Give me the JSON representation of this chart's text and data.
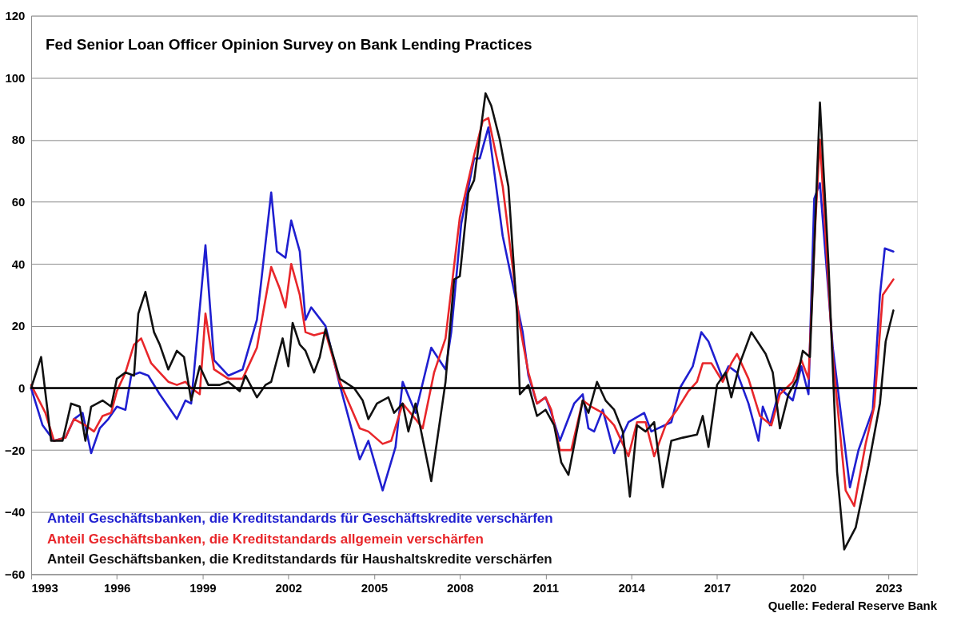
{
  "chart_data": {
    "type": "line",
    "title": "Fed Senior Loan Officer Opinion Survey on Bank Lending Practices",
    "annotations": [
      "Quelle: Federal Reserve Bank"
    ],
    "xlim": [
      1993,
      2024
    ],
    "xticks": [
      1993,
      1996,
      1999,
      2002,
      2005,
      2008,
      2011,
      2014,
      2017,
      2020,
      2023
    ],
    "ylim": [
      -60,
      120
    ],
    "yticks": [
      -60,
      -40,
      -20,
      0,
      20,
      40,
      60,
      80,
      100,
      120
    ],
    "grid": "y",
    "legend": "bottom left",
    "marker": "none",
    "line_style": "solid",
    "ref_lines": [
      {
        "axis": "y",
        "value": 0,
        "color": "#000000"
      }
    ],
    "series": [
      {
        "name": "Anteil Geschäftsbanken, die Kreditstandards für Geschäftskredite verschärfen",
        "color": "#1f1fd0",
        "x": [
          1993.0,
          1993.4,
          1993.8,
          1994.2,
          1994.5,
          1994.8,
          1995.1,
          1995.4,
          1995.7,
          1996.0,
          1996.3,
          1996.5,
          1996.8,
          1997.1,
          1997.5,
          1997.8,
          1998.1,
          1998.4,
          1998.6,
          1999.1,
          1999.4,
          1999.9,
          2000.4,
          2000.9,
          2001.4,
          2001.6,
          2001.9,
          2002.1,
          2002.4,
          2002.6,
          2002.8,
          2003.3,
          2003.8,
          2004.5,
          2004.8,
          2005.3,
          2005.75,
          2006.0,
          2006.45,
          2007.0,
          2007.5,
          2007.7,
          2008.05,
          2008.5,
          2008.7,
          2009.0,
          2009.5,
          2010.2,
          2010.4,
          2010.7,
          2011.0,
          2011.2,
          2011.5,
          2012.0,
          2012.3,
          2012.5,
          2012.7,
          2013.0,
          2013.4,
          2013.9,
          2014.45,
          2014.7,
          2015.4,
          2015.7,
          2016.15,
          2016.45,
          2016.7,
          2017.2,
          2017.4,
          2017.7,
          2018.1,
          2018.45,
          2018.6,
          2018.85,
          2019.2,
          2019.65,
          2019.95,
          2020.2,
          2020.4,
          2020.6,
          2021.05,
          2021.65,
          2021.95,
          2022.45,
          2022.7,
          2022.87,
          2023.17
        ],
        "values": [
          0,
          -12,
          -17,
          -16,
          -10,
          -8,
          -21,
          -13,
          -10,
          -6,
          -7,
          4,
          5,
          4,
          -2,
          -6,
          -10,
          -4,
          -5,
          46,
          9,
          4,
          6,
          22,
          63,
          44,
          42,
          54,
          44,
          22,
          26,
          20,
          1,
          -23,
          -17,
          -33,
          -19,
          2,
          -8,
          13,
          6,
          18,
          53,
          74,
          74,
          84,
          49,
          18,
          4,
          -5,
          -3,
          -8,
          -17,
          -5,
          -2,
          -13,
          -14,
          -7,
          -21,
          -11,
          -8,
          -14,
          -11,
          0,
          7,
          18,
          15,
          3,
          7,
          5,
          -5,
          -17,
          -6,
          -12,
          0,
          -4,
          7,
          -2,
          61,
          66,
          13,
          -32,
          -20,
          -7,
          30,
          45,
          44
        ]
      },
      {
        "name": "Anteil Geschäftsbanken, die Kreditstandards allgemein verschärfen",
        "color": "#e8262a",
        "x": [
          1993.0,
          1993.5,
          1993.8,
          1994.2,
          1994.5,
          1994.9,
          1995.2,
          1995.5,
          1995.8,
          1996.0,
          1996.3,
          1996.6,
          1996.85,
          1997.2,
          1997.5,
          1997.8,
          1998.1,
          1998.4,
          1998.6,
          1998.9,
          1999.1,
          1999.4,
          1999.9,
          2000.4,
          2000.9,
          2001.4,
          2001.7,
          2001.9,
          2002.1,
          2002.4,
          2002.6,
          2002.9,
          2003.3,
          2003.8,
          2004.5,
          2004.8,
          2005.3,
          2005.6,
          2006.0,
          2006.45,
          2006.7,
          2007.1,
          2007.5,
          2008.0,
          2008.5,
          2008.8,
          2009.0,
          2009.5,
          2010.1,
          2010.4,
          2010.7,
          2011.0,
          2011.2,
          2011.5,
          2011.9,
          2012.3,
          2012.6,
          2013.0,
          2013.4,
          2013.9,
          2014.2,
          2014.5,
          2014.8,
          2015.2,
          2015.6,
          2016.0,
          2016.3,
          2016.5,
          2016.8,
          2017.2,
          2017.5,
          2017.7,
          2018.1,
          2018.5,
          2018.9,
          2019.2,
          2019.65,
          2019.95,
          2020.2,
          2020.45,
          2020.6,
          2021.05,
          2021.5,
          2021.8,
          2022.2,
          2022.5,
          2022.8,
          2023.17
        ],
        "values": [
          1,
          -8,
          -17,
          -16,
          -10,
          -12,
          -14,
          -9,
          -8,
          -1,
          5,
          14,
          16,
          8,
          5,
          2,
          1,
          2,
          0,
          -2,
          24,
          6,
          3,
          3,
          13,
          39,
          32,
          26,
          40,
          30,
          18,
          17,
          18,
          2,
          -13,
          -14,
          -18,
          -17,
          -5,
          -10,
          -13,
          5,
          16,
          55,
          75,
          86,
          87,
          65,
          20,
          5,
          -5,
          -3,
          -7,
          -20,
          -20,
          -4,
          -6,
          -8,
          -12,
          -22,
          -11,
          -11,
          -22,
          -12,
          -7,
          -1,
          2,
          8,
          8,
          2,
          8,
          11,
          3,
          -9,
          -12,
          -2,
          2,
          9,
          3,
          55,
          80,
          10,
          -33,
          -38,
          -18,
          -6,
          30,
          35
        ]
      },
      {
        "name": "Anteil Geschäftsbanken, die Kreditstandards für Haushaltskredite verschärfen",
        "color": "#111111",
        "x": [
          1993.0,
          1993.35,
          1993.7,
          1994.1,
          1994.4,
          1994.7,
          1994.9,
          1995.1,
          1995.5,
          1995.8,
          1996.0,
          1996.3,
          1996.6,
          1996.75,
          1997.0,
          1997.3,
          1997.5,
          1997.8,
          1998.1,
          1998.35,
          1998.6,
          1998.9,
          1999.2,
          1999.6,
          1999.9,
          2000.3,
          2000.5,
          2000.9,
          2001.2,
          2001.4,
          2001.8,
          2002.0,
          2002.15,
          2002.4,
          2002.6,
          2002.9,
          2003.1,
          2003.3,
          2003.8,
          2004.3,
          2004.6,
          2004.8,
          2005.1,
          2005.5,
          2005.7,
          2006.0,
          2006.2,
          2006.45,
          2007.0,
          2007.5,
          2007.8,
          2008.0,
          2008.3,
          2008.5,
          2008.9,
          2009.1,
          2009.4,
          2009.7,
          2010.0,
          2010.1,
          2010.4,
          2010.7,
          2011.0,
          2011.3,
          2011.55,
          2011.8,
          2012.3,
          2012.5,
          2012.8,
          2013.1,
          2013.4,
          2013.7,
          2013.95,
          2014.2,
          2014.5,
          2014.8,
          2015.1,
          2015.4,
          2015.8,
          2016.3,
          2016.5,
          2016.7,
          2017.0,
          2017.3,
          2017.5,
          2017.8,
          2018.2,
          2018.7,
          2018.95,
          2019.2,
          2019.5,
          2019.8,
          2020.0,
          2020.25,
          2020.6,
          2020.9,
          2021.2,
          2021.45,
          2021.85,
          2022.3,
          2022.7,
          2022.9,
          2023.17
        ],
        "values": [
          0,
          10,
          -17,
          -17,
          -5,
          -6,
          -17,
          -6,
          -4,
          -6,
          3,
          5,
          4,
          24,
          31,
          18,
          14,
          6,
          12,
          10,
          -4,
          7,
          1,
          1,
          2,
          -1,
          4,
          -3,
          1,
          2,
          16,
          7,
          21,
          14,
          12,
          5,
          10,
          19,
          3,
          0,
          -4,
          -10,
          -5,
          -3,
          -8,
          -5,
          -14,
          -5,
          -30,
          2,
          35,
          36,
          63,
          67,
          95,
          91,
          80,
          65,
          24,
          -2,
          1,
          -9,
          -7,
          -12,
          -24,
          -28,
          -4,
          -8,
          2,
          -4,
          -7,
          -14,
          -35,
          -12,
          -14,
          -11,
          -32,
          -17,
          -16,
          -15,
          -9,
          -19,
          1,
          5,
          -3,
          8,
          18,
          11,
          5,
          -13,
          -2,
          3,
          12,
          10,
          92,
          40,
          -27,
          -52,
          -45,
          -25,
          -5,
          15,
          25
        ]
      }
    ]
  }
}
